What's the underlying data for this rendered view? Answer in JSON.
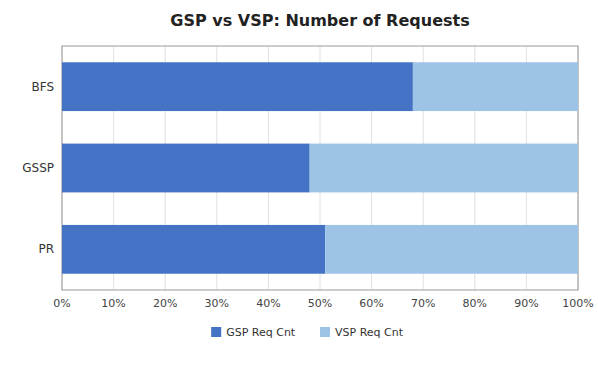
{
  "chart_data": {
    "type": "bar",
    "orientation": "horizontal",
    "stacked": true,
    "title": "GSP vs VSP: Number of Requests",
    "categories": [
      "PR",
      "GSSP",
      "BFS"
    ],
    "series": [
      {
        "name": "GSP Req Cnt",
        "color": "#4472C4",
        "values": [
          0.51,
          0.48,
          0.68
        ]
      },
      {
        "name": "VSP Req Cnt",
        "color": "#9DC3E6",
        "values": [
          0.49,
          0.52,
          0.32
        ]
      }
    ],
    "xlim": [
      0,
      1.0
    ],
    "xticks": [
      {
        "value": 0,
        "label": "0%"
      },
      {
        "value": 0.1,
        "label": "10%"
      },
      {
        "value": 0.2,
        "label": "20%"
      },
      {
        "value": 0.3,
        "label": "30%"
      },
      {
        "value": 0.4,
        "label": "40%"
      },
      {
        "value": 0.5,
        "label": "50%"
      },
      {
        "value": 0.6,
        "label": "60%"
      },
      {
        "value": 0.7,
        "label": "70%"
      },
      {
        "value": 0.8,
        "label": "80%"
      },
      {
        "value": 0.9,
        "label": "90%"
      },
      {
        "value": 1.0,
        "label": "100%"
      }
    ],
    "grid": true,
    "legend": "bottom"
  }
}
